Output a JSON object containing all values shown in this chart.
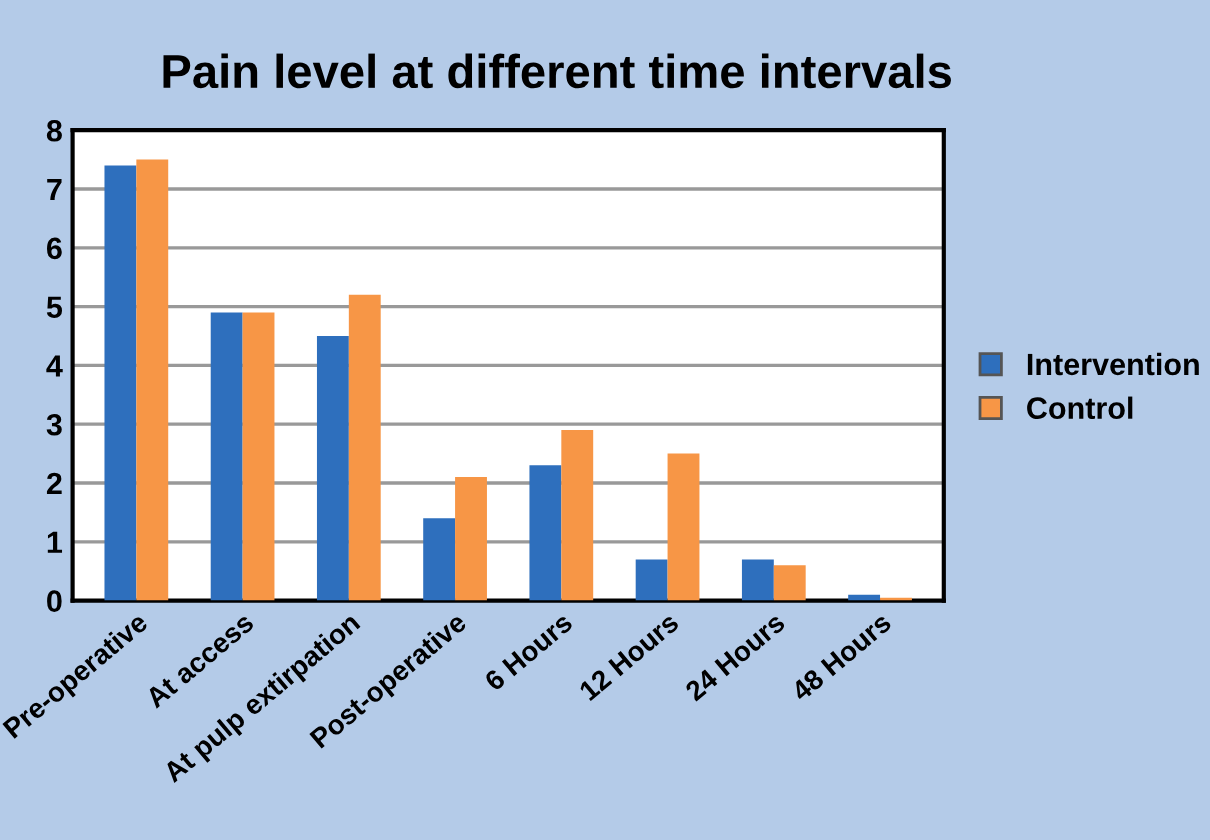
{
  "chart_data": {
    "type": "bar",
    "title": "Pain level at different time intervals",
    "categories": [
      "Pre-operative",
      "At access",
      "At pulp extirpation",
      "Post-operative",
      "6 Hours",
      "12 Hours",
      "24 Hours",
      "48 Hours"
    ],
    "series": [
      {
        "name": "Intervention",
        "color": "#2e6fbd",
        "values": [
          7.4,
          4.9,
          4.5,
          1.4,
          2.3,
          0.7,
          0.7,
          0.1
        ]
      },
      {
        "name": "Control",
        "color": "#f79646",
        "values": [
          7.5,
          4.9,
          5.2,
          2.1,
          2.9,
          2.5,
          0.6,
          0.05
        ]
      }
    ],
    "ylim": [
      0,
      8
    ],
    "yticks": [
      0,
      1,
      2,
      3,
      4,
      5,
      6,
      7,
      8
    ],
    "grid": "y",
    "legend": "right"
  }
}
